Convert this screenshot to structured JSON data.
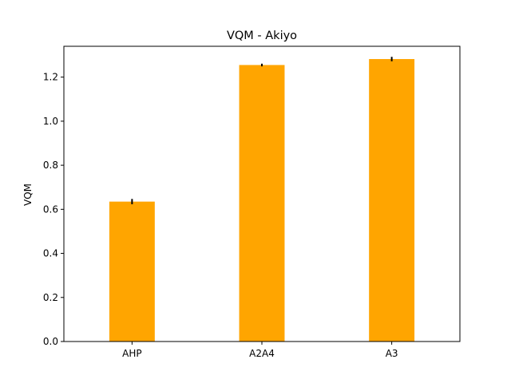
{
  "chart_data": {
    "type": "bar",
    "title": "VQM - Akiyo",
    "xlabel": "",
    "ylabel": "VQM",
    "categories": [
      "AHP",
      "A2A4",
      "A3"
    ],
    "values": [
      0.635,
      1.255,
      1.282
    ],
    "errors": [
      0.012,
      0.006,
      0.01
    ],
    "bar_color": "#FFA500",
    "error_color": "#000000",
    "ylim": [
      0,
      1.34
    ],
    "yticks": [
      0.0,
      0.2,
      0.4,
      0.6,
      0.8,
      1.0,
      1.2
    ],
    "ytick_labels": [
      "0.0",
      "0.2",
      "0.4",
      "0.6",
      "0.8",
      "1.0",
      "1.2"
    ],
    "grid": false,
    "legend": false
  }
}
